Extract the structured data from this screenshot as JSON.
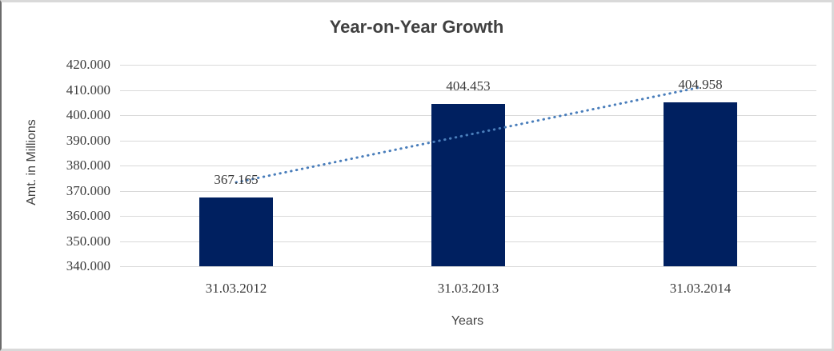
{
  "chart_data": {
    "type": "bar",
    "title": "Year-on-Year Growth",
    "xlabel": "Years",
    "ylabel": "Amt. in Millions",
    "categories": [
      "31.03.2012",
      "31.03.2013",
      "31.03.2014"
    ],
    "values": [
      367165,
      404453,
      404958
    ],
    "value_labels": [
      "367.165",
      "404.453",
      "404.958"
    ],
    "ylim": [
      340000,
      420000
    ],
    "ytick_step": 10000,
    "ytick_labels": [
      "340.000",
      "350.000",
      "360.000",
      "370.000",
      "380.000",
      "390.000",
      "400.000",
      "410.000",
      "420.000"
    ],
    "grid": true,
    "legend_position": "none",
    "bar_color": "#002060",
    "gridline_color": "#d9d9d9",
    "trendline": {
      "type": "linear",
      "style": "dotted",
      "color": "#4a7ebb"
    }
  }
}
